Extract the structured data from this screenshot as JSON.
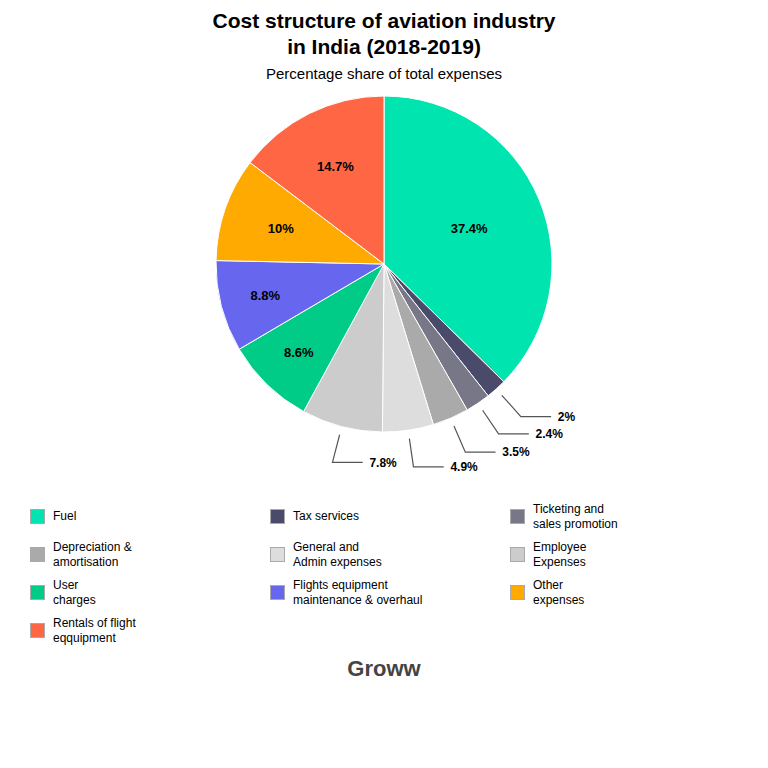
{
  "chart_data": {
    "type": "pie",
    "title": "Cost structure of aviation industry\nin India (2018-2019)",
    "subtitle": "Percentage share of total expenses",
    "categories": [
      "Fuel",
      "Tax services",
      "Ticketing and\nsales promotion",
      "Depreciation &\namortisation",
      "General and\nAdmin expenses",
      "Employee\nExpenses",
      "User\ncharges",
      "Flights equipment\nmaintenance & overhaul",
      "Other\nexpenses",
      "Rentals of flight\neqquipment"
    ],
    "values": [
      37.4,
      2.0,
      2.4,
      3.5,
      4.9,
      7.8,
      8.6,
      8.8,
      10.0,
      14.7
    ],
    "value_labels": [
      "37.4%",
      "2%",
      "2.4%",
      "3.5%",
      "4.9%",
      "7.8%",
      "8.6%",
      "8.8%",
      "10%",
      "14.7%"
    ],
    "colors": [
      "#00e5b0",
      "#4a4a6a",
      "#777788",
      "#aaaaaa",
      "#dddddd",
      "#cccccc",
      "#00cc88",
      "#6666ee",
      "#ffaa00",
      "#ff6644"
    ],
    "data_labels": true,
    "legend": "bottom",
    "annotations": [
      "Groww"
    ]
  }
}
